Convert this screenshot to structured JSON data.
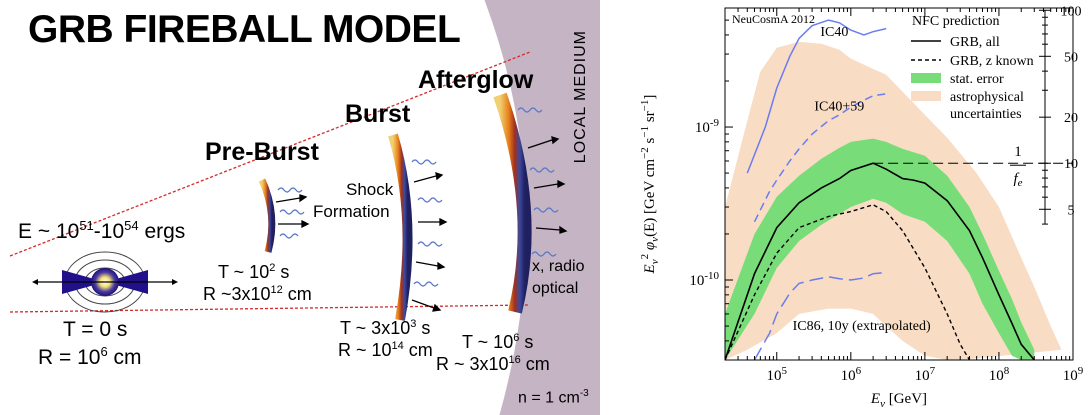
{
  "fireball": {
    "title": "GRB FIREBALL MODEL",
    "energy": "E ~ 10",
    "energy_exp1": "51",
    "energy_dash": "-10",
    "energy_exp2": "54",
    "energy_unit": " ergs",
    "preburst": "Pre-Burst",
    "burst": "Burst",
    "afterglow": "Afterglow",
    "shock1": "Shock",
    "shock2": "Formation",
    "local_medium": "LOCAL MEDIUM",
    "xradio": "x, radio",
    "optical": "optical",
    "t0": "T = 0 s",
    "r0": "R = 10",
    "r0_exp": "6",
    "r0_unit": " cm",
    "t1": "T ~ 10",
    "t1_exp": "2",
    "t1_unit": " s",
    "r1": "R ~3x10",
    "r1_exp": "12",
    "r1_unit": " cm",
    "t2": "T ~ 3x10",
    "t2_exp": "3",
    "t2_unit": " s",
    "r2": "R ~ 10",
    "r2_exp": "14",
    "r2_unit": " cm",
    "t3": "T ~ 10",
    "t3_exp": "6",
    "t3_unit": " s",
    "r3": "R ~ 3x10",
    "r3_exp": "16",
    "r3_unit": " cm",
    "density": "n = 1 cm",
    "density_exp": "-3",
    "colors": {
      "medium": "#c4b4c4",
      "cone": "#d42a2a",
      "wave": "#5a78c8"
    }
  },
  "chart_data": {
    "type": "line",
    "title": "",
    "watermark": "NeuCosmA 2012",
    "xlabel": "E_ν [GeV]",
    "ylabel": "E_ν² φ_ν(E) [GeV cm⁻² s⁻¹ sr⁻¹]",
    "x_log": true,
    "y_log": true,
    "xlim": [
      20000,
      1000000000
    ],
    "ylim": [
      3e-11,
      6e-09
    ],
    "x_ticks": [
      "10^5",
      "10^6",
      "10^7",
      "10^8",
      "10^9"
    ],
    "y_ticks": [
      "10^-10",
      "10^-9"
    ],
    "right_axis": {
      "label": "1/f_e",
      "ticks": [
        "5",
        "10",
        "20",
        "50",
        "100"
      ],
      "tick_values": [
        5,
        10,
        20,
        50,
        100
      ],
      "reference_value": 10,
      "ref_flux": 5.8e-10
    },
    "legend": {
      "title": "NFC prediction",
      "position": "top-right",
      "entries": [
        "GRB, all",
        "GRB, z known",
        "stat. error",
        "astrophysical",
        "uncertainties"
      ]
    },
    "annotations": [
      "IC40",
      "IC40+59",
      "IC86, 10y (extrapolated)"
    ],
    "colors": {
      "astro": "#f8dcc4",
      "stat": "#78dc78",
      "limit": "#6a7cf0"
    },
    "series": [
      {
        "name": "GRB, all",
        "x": [
          20000,
          50000,
          100000,
          200000,
          400000,
          700000,
          1000000,
          2000000,
          3000000,
          5000000,
          7000000,
          10000000,
          20000000,
          40000000,
          60000000,
          100000000,
          150000000,
          200000000,
          300000000
        ],
        "y": [
          3e-11,
          1.1e-10,
          2.2e-10,
          3.2e-10,
          4e-10,
          4.6e-10,
          5.2e-10,
          5.8e-10,
          5.3e-10,
          4.6e-10,
          4.5e-10,
          4.3e-10,
          3.3e-10,
          2.1e-10,
          1.4e-10,
          8e-11,
          5.2e-11,
          3.8e-11,
          3e-11
        ]
      },
      {
        "name": "GRB, z known",
        "x": [
          20000,
          50000,
          100000,
          200000,
          500000,
          1000000,
          2000000,
          3000000,
          5000000,
          10000000,
          20000000,
          30000000,
          40000000
        ],
        "y": [
          3e-11,
          8e-11,
          1.5e-10,
          2.2e-10,
          2.6e-10,
          2.8e-10,
          3.1e-10,
          2.8e-10,
          2.1e-10,
          1.2e-10,
          6e-11,
          3.8e-11,
          3e-11
        ]
      },
      {
        "name": "stat. error upper",
        "x": [
          20000,
          50000,
          100000,
          200000,
          400000,
          700000,
          1000000,
          2000000,
          3000000,
          5000000,
          10000000,
          20000000,
          40000000,
          60000000,
          100000000,
          150000000,
          200000000,
          300000000
        ],
        "y": [
          6e-11,
          2e-10,
          3.5e-10,
          4.8e-10,
          6.2e-10,
          7.3e-10,
          8e-10,
          8.4e-10,
          8e-10,
          7.2e-10,
          6.5e-10,
          4.8e-10,
          3e-10,
          2e-10,
          1.15e-10,
          7.5e-11,
          5.3e-11,
          3.5e-11
        ]
      },
      {
        "name": "stat. error lower",
        "x": [
          20000,
          50000,
          100000,
          200000,
          400000,
          700000,
          1000000,
          2000000,
          3000000,
          5000000,
          10000000,
          20000000,
          40000000,
          60000000,
          100000000,
          150000000,
          200000000,
          300000000
        ],
        "y": [
          3e-11,
          6e-11,
          1.2e-10,
          1.8e-10,
          2.3e-10,
          2.7e-10,
          3e-10,
          3.4e-10,
          3.2e-10,
          2.7e-10,
          2.4e-10,
          1.8e-10,
          1.1e-10,
          7e-11,
          4.5e-11,
          3.2e-11,
          3e-11,
          3e-11
        ]
      },
      {
        "name": "astrophysical upper",
        "x": [
          20000,
          40000,
          60000,
          100000,
          200000,
          400000,
          700000,
          1000000,
          2000000,
          3000000,
          5000000,
          10000000,
          20000000,
          50000000,
          100000000,
          200000000,
          300000000,
          500000000,
          700000000
        ],
        "y": [
          3e-10,
          1.1e-09,
          2.3e-09,
          3.3e-09,
          3.6e-09,
          3.5e-09,
          3.2e-09,
          2.8e-09,
          2.4e-09,
          2.2e-09,
          1.7e-09,
          1.2e-09,
          8.5e-10,
          5e-10,
          3e-10,
          1.4e-10,
          9e-11,
          5e-11,
          3.5e-11
        ]
      },
      {
        "name": "astrophysical lower",
        "x": [
          20000,
          40000,
          100000,
          200000,
          500000,
          1000000,
          2000000,
          3000000,
          5000000,
          10000000,
          20000000,
          30000000
        ],
        "y": [
          3e-11,
          3.5e-11,
          4.5e-11,
          6e-11,
          6.5e-11,
          6.5e-11,
          6e-11,
          5e-11,
          4e-11,
          3.2e-11,
          3e-11,
          3e-11
        ]
      },
      {
        "name": "IC40",
        "x": [
          40000,
          70000,
          100000,
          150000,
          200000,
          300000,
          500000,
          700000,
          1000000,
          1500000,
          2000000,
          3000000
        ],
        "y": [
          5e-10,
          1e-09,
          1.8e-09,
          2.9e-09,
          3.8e-09,
          4.6e-09,
          5e-09,
          4.8e-09,
          4.3e-09,
          4e-09,
          4.2e-09,
          4.4e-09
        ]
      },
      {
        "name": "IC40+59",
        "x": [
          50000,
          80000,
          100000,
          150000,
          200000,
          300000,
          500000,
          700000,
          1000000,
          1500000,
          2000000,
          3000000
        ],
        "y": [
          2.4e-10,
          3.8e-10,
          4.5e-10,
          6e-10,
          7.2e-10,
          9e-10,
          1.1e-09,
          1.2e-09,
          1.35e-09,
          1.5e-09,
          1.6e-09,
          1.65e-09
        ]
      },
      {
        "name": "IC86, 10y (extrapolated)",
        "x": [
          50000,
          80000,
          100000,
          150000,
          200000,
          300000,
          500000,
          700000,
          1000000,
          1500000,
          2000000,
          3000000
        ],
        "y": [
          3e-11,
          4.5e-11,
          6e-11,
          8.2e-11,
          9.5e-11,
          1e-10,
          1.05e-10,
          1.02e-10,
          1e-10,
          1.03e-10,
          1.1e-10,
          1.12e-10
        ]
      }
    ]
  }
}
